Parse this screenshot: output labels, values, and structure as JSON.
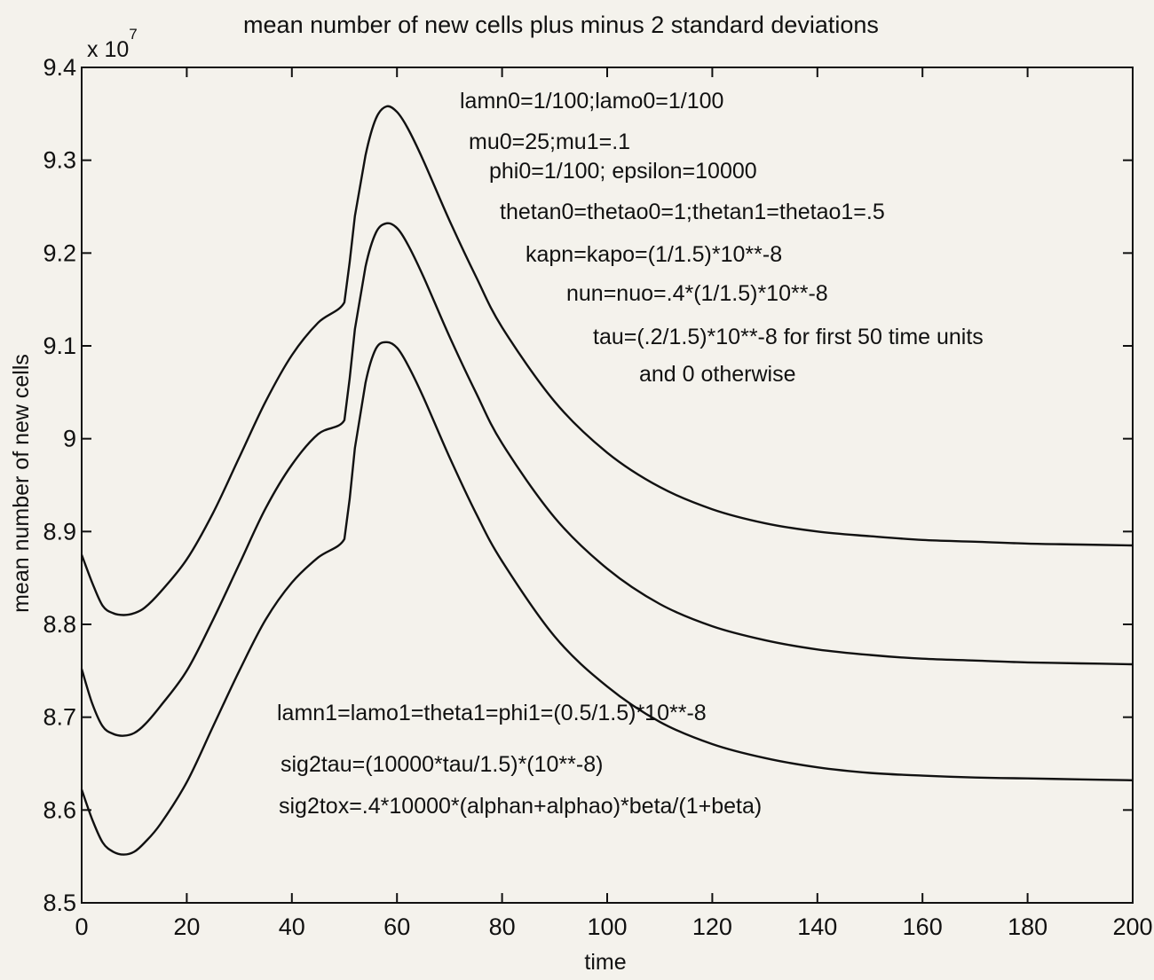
{
  "chart_data": {
    "type": "line",
    "title": "mean number of new cells plus minus 2 standard deviations",
    "xlabel": "time",
    "ylabel": "mean number of new cells",
    "y_exponent_prefix": "x 10",
    "y_exponent_power": "7",
    "xlim": [
      0,
      200
    ],
    "ylim": [
      8.5,
      9.4
    ],
    "grid": false,
    "x_ticks": [
      "0",
      "20",
      "40",
      "60",
      "80",
      "100",
      "120",
      "140",
      "160",
      "180",
      "200"
    ],
    "y_ticks": [
      "8.5",
      "8.6",
      "8.7",
      "8.8",
      "8.9",
      "9",
      "9.1",
      "9.2",
      "9.3",
      "9.4"
    ],
    "series": [
      {
        "x": [
          0,
          2,
          4,
          6,
          8,
          10,
          12,
          15,
          20,
          25,
          30,
          35,
          40,
          45,
          50,
          51,
          52,
          54,
          56,
          58,
          60,
          62,
          65,
          70,
          75,
          80,
          90,
          100,
          110,
          120,
          130,
          140,
          150,
          160,
          170,
          180,
          190,
          200
        ],
        "values": [
          8.875,
          8.845,
          8.82,
          8.812,
          8.81,
          8.812,
          8.818,
          8.835,
          8.87,
          8.92,
          8.98,
          9.04,
          9.09,
          9.125,
          9.147,
          9.19,
          9.24,
          9.305,
          9.345,
          9.358,
          9.352,
          9.335,
          9.3,
          9.235,
          9.175,
          9.12,
          9.04,
          8.985,
          8.948,
          8.924,
          8.909,
          8.9,
          8.895,
          8.891,
          8.889,
          8.887,
          8.886,
          8.885
        ]
      },
      {
        "x": [
          0,
          2,
          4,
          6,
          8,
          10,
          12,
          15,
          20,
          25,
          30,
          35,
          40,
          45,
          50,
          51,
          52,
          54,
          56,
          58,
          60,
          62,
          65,
          70,
          75,
          80,
          90,
          100,
          110,
          120,
          130,
          140,
          150,
          160,
          170,
          180,
          190,
          200
        ],
        "values": [
          8.752,
          8.715,
          8.69,
          8.682,
          8.68,
          8.683,
          8.692,
          8.712,
          8.75,
          8.805,
          8.865,
          8.925,
          8.972,
          9.005,
          9.02,
          9.065,
          9.118,
          9.185,
          9.222,
          9.232,
          9.227,
          9.21,
          9.175,
          9.11,
          9.05,
          8.995,
          8.915,
          8.86,
          8.822,
          8.798,
          8.783,
          8.773,
          8.767,
          8.763,
          8.761,
          8.759,
          8.758,
          8.757
        ]
      },
      {
        "x": [
          0,
          2,
          4,
          6,
          8,
          10,
          12,
          15,
          20,
          25,
          30,
          35,
          40,
          45,
          50,
          51,
          52,
          54,
          56,
          58,
          60,
          62,
          65,
          70,
          75,
          80,
          90,
          100,
          110,
          120,
          130,
          140,
          150,
          160,
          170,
          180,
          190,
          200
        ],
        "values": [
          8.622,
          8.59,
          8.565,
          8.555,
          8.552,
          8.555,
          8.565,
          8.585,
          8.63,
          8.69,
          8.75,
          8.805,
          8.845,
          8.872,
          8.892,
          8.935,
          8.99,
          9.06,
          9.097,
          9.104,
          9.098,
          9.08,
          9.045,
          8.98,
          8.92,
          8.868,
          8.787,
          8.733,
          8.695,
          8.671,
          8.656,
          8.646,
          8.64,
          8.637,
          8.635,
          8.634,
          8.633,
          8.632
        ]
      }
    ],
    "annotations_top": [
      "lamn0=1/100;lamo0=1/100",
      "mu0=25;mu1=.1",
      "phi0=1/100; epsilon=10000",
      "thetan0=thetao0=1;thetan1=thetao1=.5",
      "kapn=kapo=(1/1.5)*10**-8",
      "nun=nuo=.4*(1/1.5)*10**-8",
      "tau=(.2/1.5)*10**-8 for first 50 time units",
      "and 0 otherwise"
    ],
    "annotations_bottom": [
      "lamn1=lamo1=theta1=phi1=(0.5/1.5)*10**-8",
      "sig2tau=(10000*tau/1.5)*(10**-8)",
      "sig2tox=.4*10000*(alphan+alphao)*beta/(1+beta)"
    ]
  }
}
